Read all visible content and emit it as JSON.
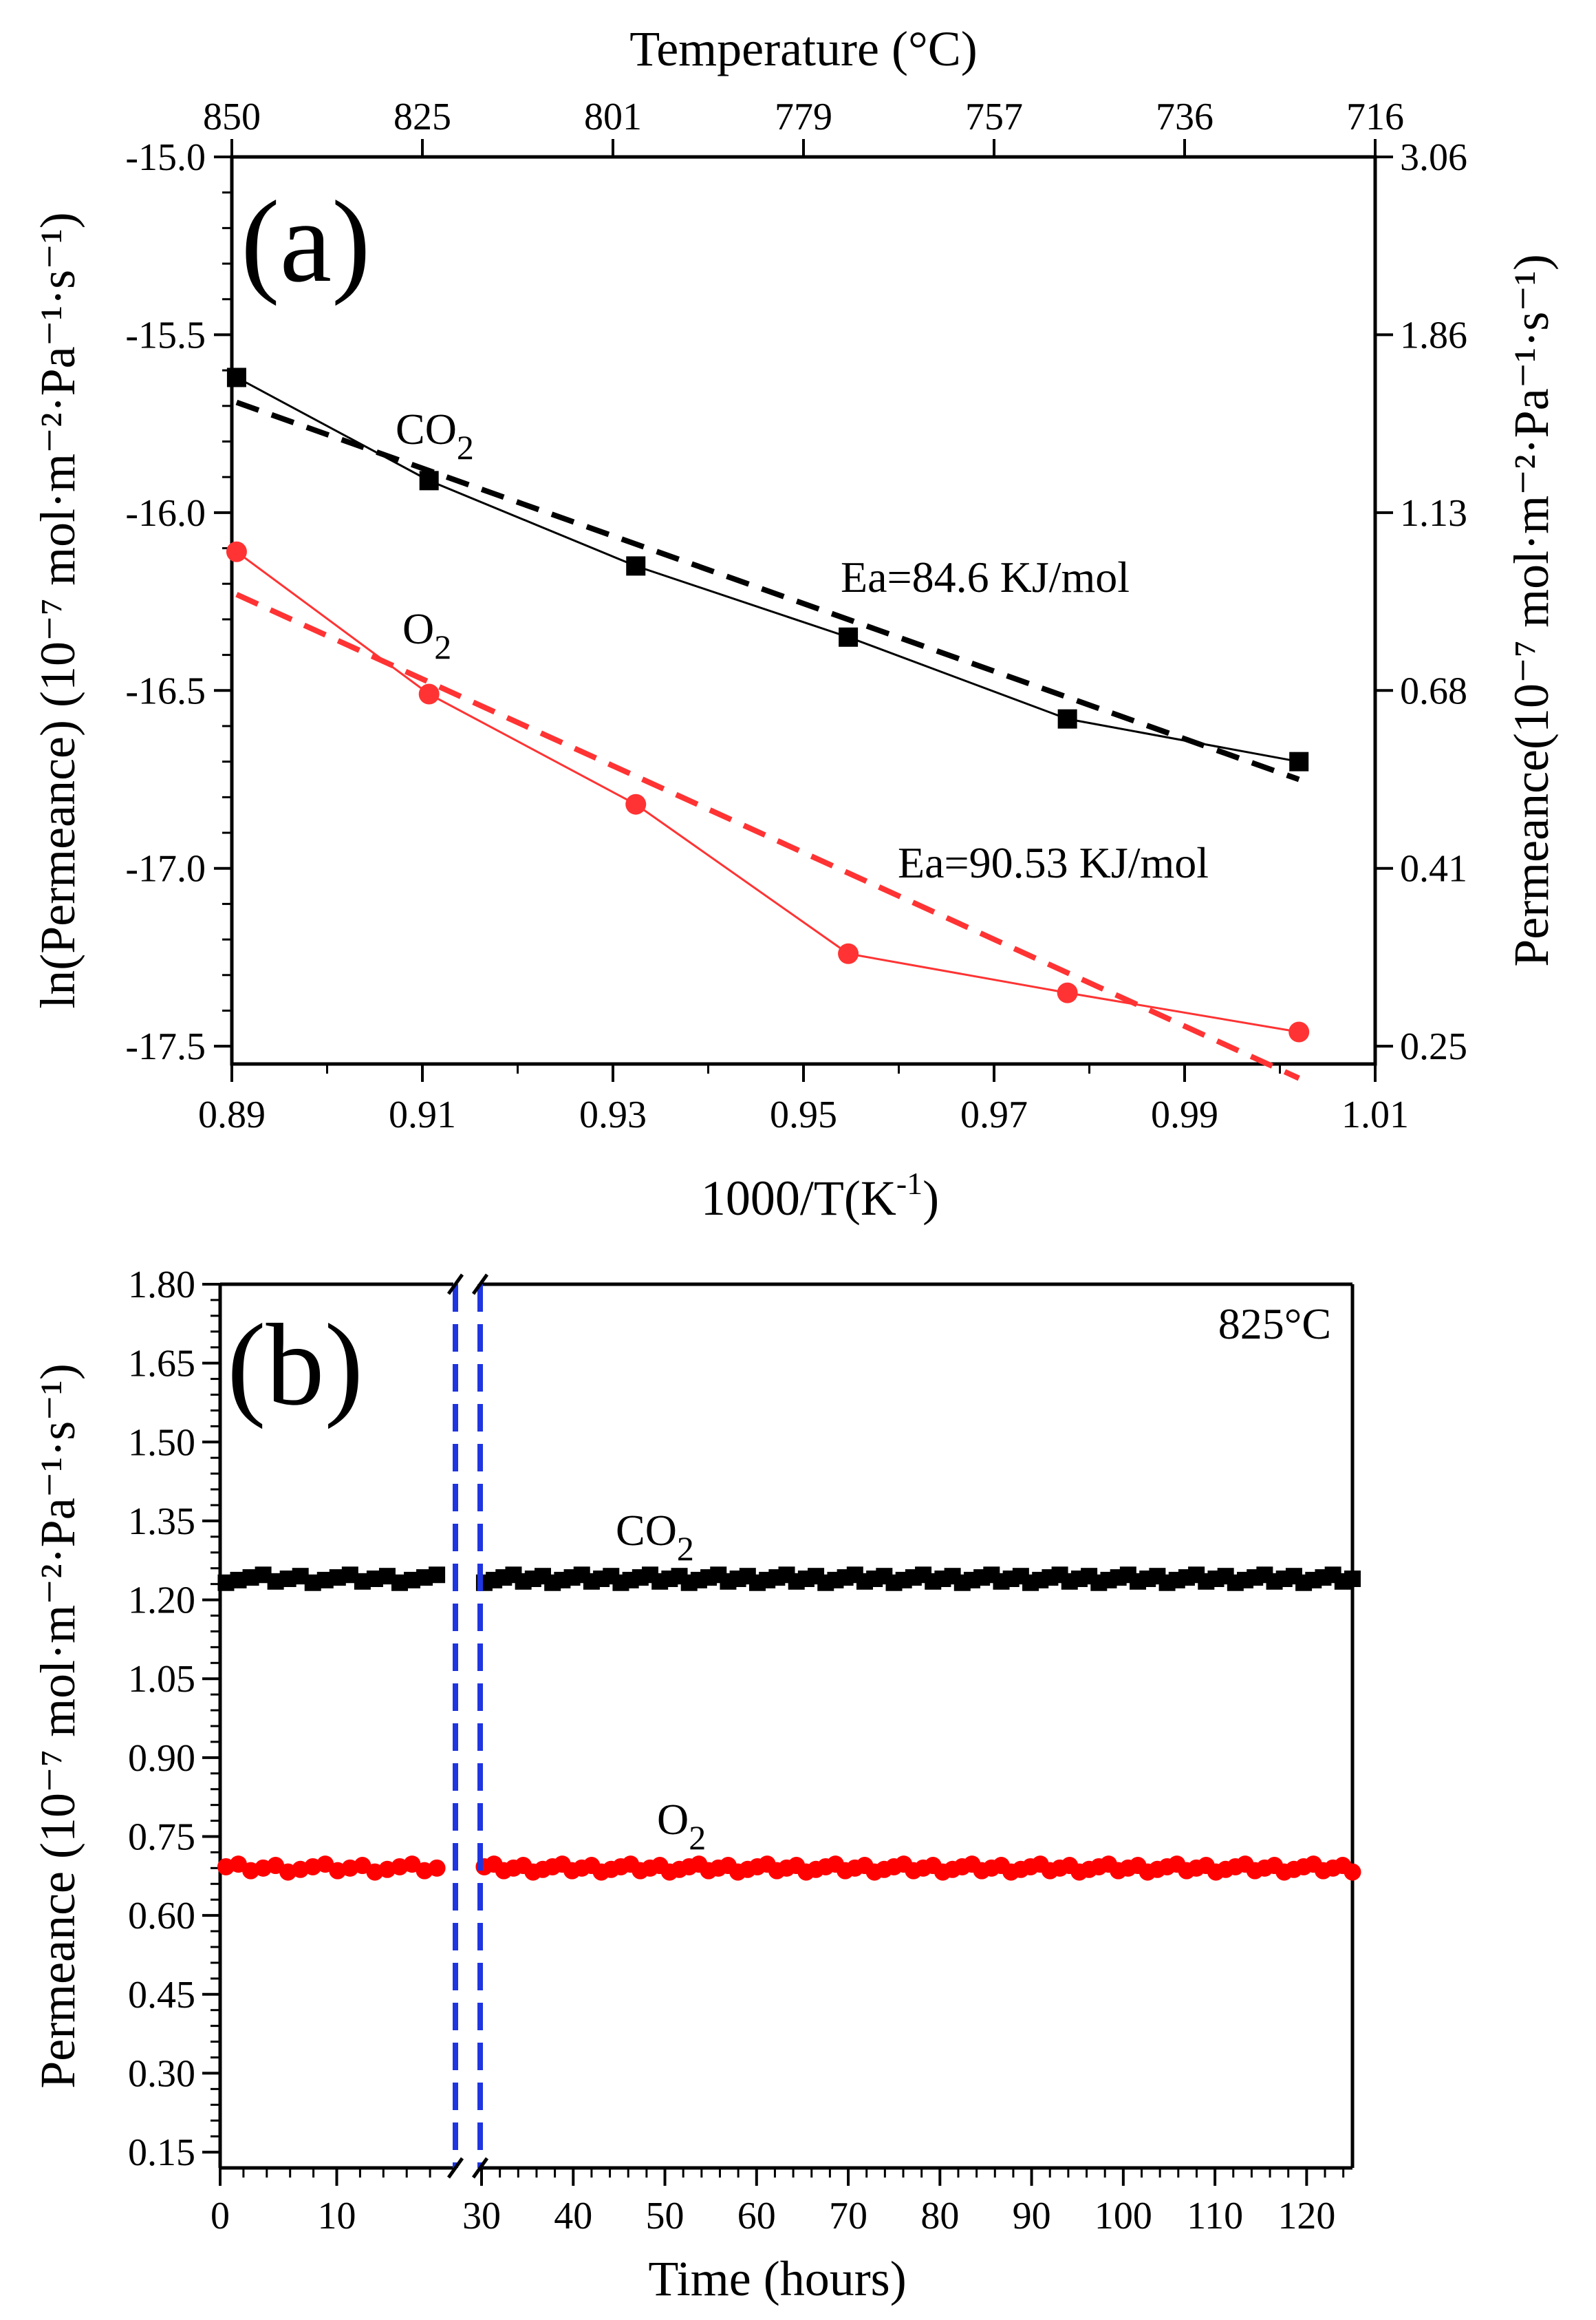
{
  "chart_data": [
    {
      "type": "line",
      "panel_label": "(a)",
      "xlabel_base": "1000/T(K",
      "xlabel_sup": "-1",
      "xlabel_tail": ")",
      "xlim": [
        0.89,
        1.01
      ],
      "xticks": [
        "0.89",
        "0.91",
        "0.93",
        "0.95",
        "0.97",
        "0.99",
        "1.01"
      ],
      "ylabel": "ln(Permeance) (10⁻⁷ mol·m⁻²·Pa⁻¹·s⁻¹)",
      "ylim": [
        -17.55,
        -15.0
      ],
      "yticks": [
        "-15.0",
        "-15.5",
        "-16.0",
        "-16.5",
        "-17.0",
        "-17.5"
      ],
      "top_axis_label": "Temperature (°C)",
      "top_ticks": [
        "850",
        "825",
        "801",
        "779",
        "757",
        "736",
        "716"
      ],
      "right_axis_label": "Permeance(10⁻⁷ mol·m⁻²·Pa⁻¹·s⁻¹)",
      "right_ticks": [
        "3.06",
        "1.86",
        "1.13",
        "0.68",
        "0.41",
        "0.25"
      ],
      "series": [
        {
          "name": "CO",
          "sub": "2",
          "color": "#000000",
          "marker": "square",
          "x": [
            0.8905,
            0.9107,
            0.9324,
            0.9547,
            0.9777,
            1.002
          ],
          "y": [
            -15.62,
            -15.91,
            -16.15,
            -16.35,
            -16.58,
            -16.7
          ],
          "fit_x": [
            0.8905,
            1.002
          ],
          "fit_y": [
            -15.69,
            -16.75
          ],
          "fit_label": "Ea=84.6 KJ/mol"
        },
        {
          "name": "O",
          "sub": "2",
          "color": "#ff3333",
          "marker": "circle",
          "x": [
            0.8905,
            0.9107,
            0.9324,
            0.9547,
            0.9777,
            1.002
          ],
          "y": [
            -16.11,
            -16.51,
            -16.82,
            -17.24,
            -17.35,
            -17.46
          ],
          "fit_x": [
            0.8905,
            1.002
          ],
          "fit_y": [
            -16.23,
            -17.59
          ],
          "fit_label": "Ea=90.53 KJ/mol"
        }
      ]
    },
    {
      "type": "scatter",
      "panel_label": "(b)",
      "annotation": "825°C",
      "xlabel": "Time (hours)",
      "xticks_left": [
        "0",
        "10"
      ],
      "xticks_right": [
        "30",
        "40",
        "50",
        "60",
        "70",
        "80",
        "90",
        "100",
        "110",
        "120"
      ],
      "ylabel": "Permeance (10⁻⁷ mol·m⁻²·Pa⁻¹·s⁻¹)",
      "ylim": [
        0.12,
        1.8
      ],
      "yticks": [
        "1.80",
        "1.65",
        "1.50",
        "1.35",
        "1.20",
        "1.05",
        "0.90",
        "0.75",
        "0.60",
        "0.45",
        "0.30",
        "0.15"
      ],
      "axis_break_color": "#1f35e0",
      "series": [
        {
          "name": "CO",
          "sub": "2",
          "color": "#000000",
          "marker": "square",
          "mean_value": 1.24,
          "x_range_hours": [
            0.5,
            125
          ],
          "points": 118
        },
        {
          "name": "O",
          "sub": "2",
          "color": "#ff0000",
          "marker": "circle",
          "mean_value": 0.69,
          "x_range_hours": [
            0.5,
            125
          ],
          "points": 118
        }
      ]
    }
  ]
}
